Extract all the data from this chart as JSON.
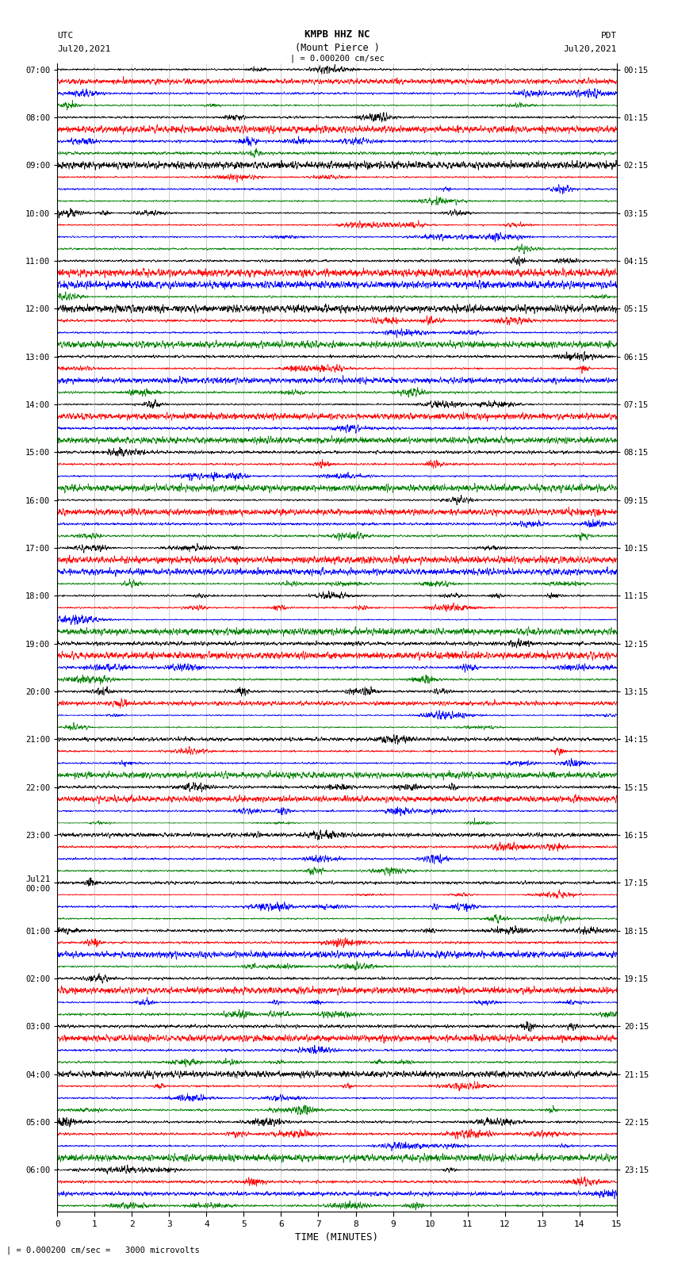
{
  "title_line1": "KMPB HHZ NC",
  "title_line2": "(Mount Pierce )",
  "scale_label": "| = 0.000200 cm/sec",
  "footer_label": "| = 0.000200 cm/sec =   3000 microvolts",
  "utc_label": "UTC",
  "pdt_label": "PDT",
  "date_left": "Jul20,2021",
  "date_right": "Jul20,2021",
  "xlabel": "TIME (MINUTES)",
  "left_hours": [
    "07:00",
    "08:00",
    "09:00",
    "10:00",
    "11:00",
    "12:00",
    "13:00",
    "14:00",
    "15:00",
    "16:00",
    "17:00",
    "18:00",
    "19:00",
    "20:00",
    "21:00",
    "22:00",
    "23:00",
    "Jul21\n00:00",
    "01:00",
    "02:00",
    "03:00",
    "04:00",
    "05:00",
    "06:00"
  ],
  "right_hours": [
    "00:15",
    "01:15",
    "02:15",
    "03:15",
    "04:15",
    "05:15",
    "06:15",
    "07:15",
    "08:15",
    "09:15",
    "10:15",
    "11:15",
    "12:15",
    "13:15",
    "14:15",
    "15:15",
    "16:15",
    "17:15",
    "18:15",
    "19:15",
    "20:15",
    "21:15",
    "22:15",
    "23:15"
  ],
  "colors": [
    "black",
    "red",
    "blue",
    "green"
  ],
  "n_cols": 3000,
  "amplitude": 0.42,
  "background_color": "white",
  "trace_linewidth": 0.5,
  "fig_width": 8.5,
  "fig_height": 16.13,
  "dpi": 100,
  "n_time_slots": 24,
  "n_traces_per_slot": 4,
  "grid_color": "#aaaaaa",
  "grid_linewidth": 0.4,
  "fontsize_ticks": 7.5,
  "fontsize_title": 9,
  "fontsize_footer": 7.5,
  "fontsize_xlabel": 9
}
